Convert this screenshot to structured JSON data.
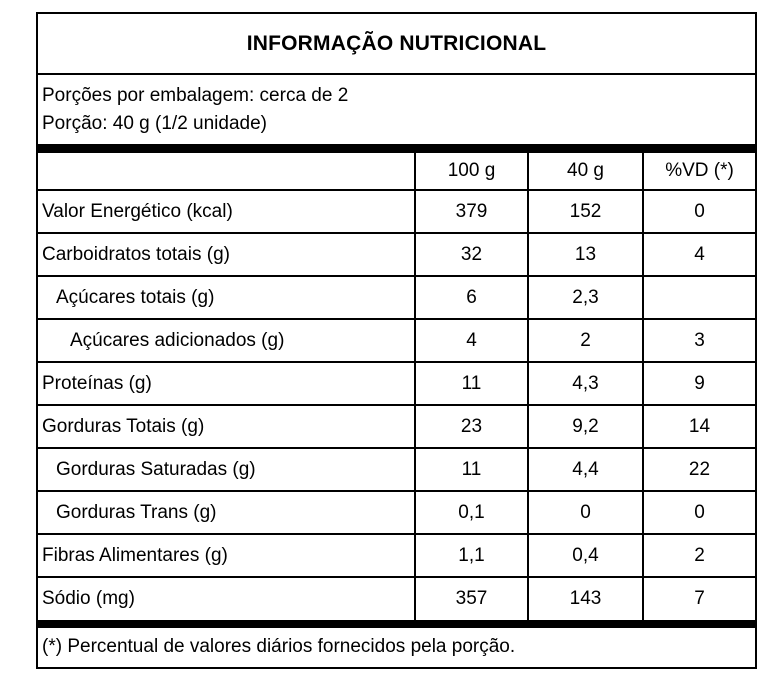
{
  "title": "INFORMAÇÃO NUTRICIONAL",
  "serving_info": {
    "line1": "Porções por embalagem: cerca de 2",
    "line2": "Porção: 40 g (1/2 unidade)"
  },
  "table": {
    "columns": [
      "",
      "100 g",
      "40 g",
      "%VD (*)"
    ],
    "rows": [
      {
        "label": "Valor Energético (kcal)",
        "indent": 0,
        "per_100g": "379",
        "per_40g": "152",
        "percent_vd": "0"
      },
      {
        "label": "Carboidratos totais (g)",
        "indent": 0,
        "per_100g": "32",
        "per_40g": "13",
        "percent_vd": "4"
      },
      {
        "label": "Açúcares totais (g)",
        "indent": 1,
        "per_100g": "6",
        "per_40g": "2,3",
        "percent_vd": ""
      },
      {
        "label": "Açúcares adicionados (g)",
        "indent": 2,
        "per_100g": "4",
        "per_40g": "2",
        "percent_vd": "3"
      },
      {
        "label": "Proteínas (g)",
        "indent": 0,
        "per_100g": "11",
        "per_40g": "4,3",
        "percent_vd": "9"
      },
      {
        "label": "Gorduras Totais (g)",
        "indent": 0,
        "per_100g": "23",
        "per_40g": "9,2",
        "percent_vd": "14"
      },
      {
        "label": "Gorduras Saturadas (g)",
        "indent": 1,
        "per_100g": "11",
        "per_40g": "4,4",
        "percent_vd": "22"
      },
      {
        "label": "Gorduras Trans (g)",
        "indent": 1,
        "per_100g": "0,1",
        "per_40g": "0",
        "percent_vd": "0"
      },
      {
        "label": "Fibras Alimentares (g)",
        "indent": 0,
        "per_100g": "1,1",
        "per_40g": "0,4",
        "percent_vd": "2"
      },
      {
        "label": "Sódio (mg)",
        "indent": 0,
        "per_100g": "357",
        "per_40g": "143",
        "percent_vd": "7"
      }
    ]
  },
  "footnote": "(*) Percentual de valores diários fornecidos pela porção.",
  "colors": {
    "border": "#000000",
    "background": "#ffffff",
    "text": "#000000"
  }
}
